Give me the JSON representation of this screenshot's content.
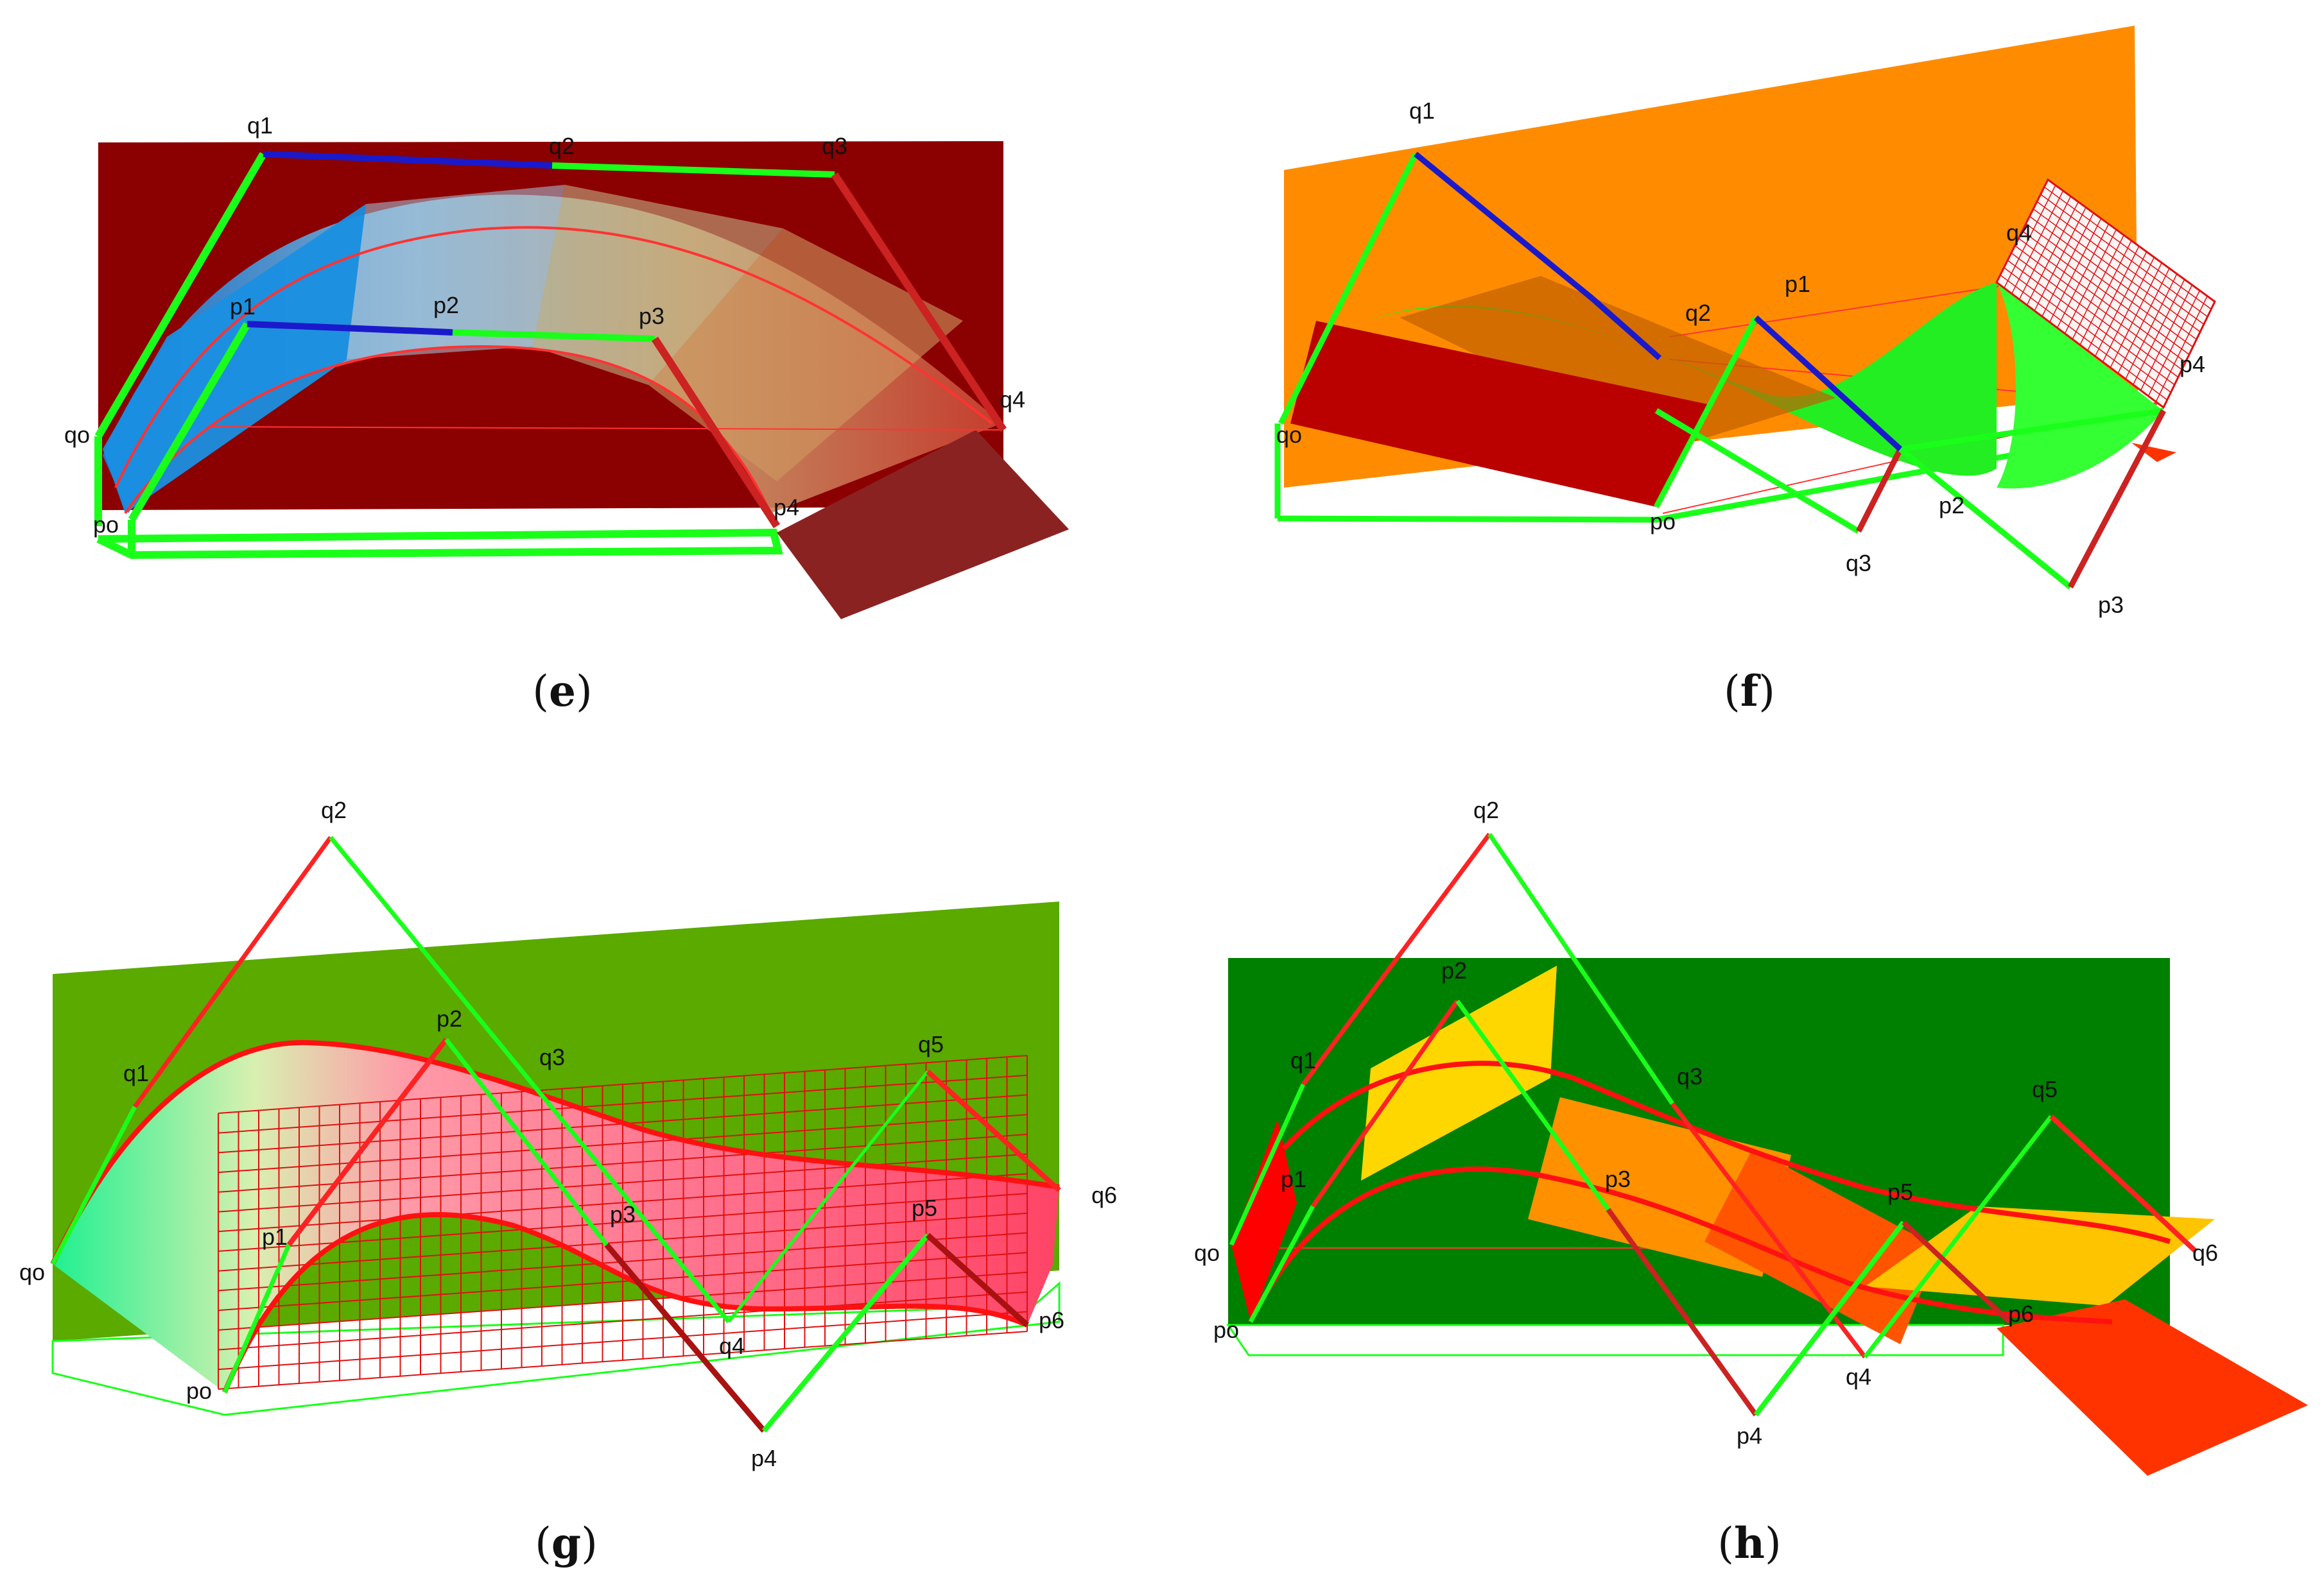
{
  "panels": [
    {
      "id": "e",
      "caption_open": "(",
      "caption_letter": "e",
      "caption_close": ")",
      "labels": [
        "q1",
        "q2",
        "q3",
        "q4",
        "qo",
        "p1",
        "p2",
        "p3",
        "p4",
        "po"
      ],
      "colors": {
        "backplane": "#8b0000",
        "control": "#1aff1a",
        "control_dark": "#cc2222",
        "blue": "#1a1acc"
      }
    },
    {
      "id": "f",
      "caption_open": "(",
      "caption_letter": "f",
      "caption_close": ")",
      "labels": [
        "q1",
        "q2",
        "q3",
        "q4",
        "qo",
        "p1",
        "p2",
        "p3",
        "p4",
        "po"
      ],
      "colors": {
        "backplane": "#ff8c00",
        "surface": "#22ee22",
        "plate": "#bb0000"
      }
    },
    {
      "id": "g",
      "caption_open": "(",
      "caption_letter": "g",
      "caption_close": ")",
      "labels": [
        "q1",
        "q2",
        "q3",
        "q4",
        "q5",
        "q6",
        "qo",
        "p1",
        "p2",
        "p3",
        "p4",
        "p5",
        "p6",
        "po"
      ],
      "colors": {
        "backplane": "#5aaa00",
        "surface": "#ff5b78",
        "grid": "#e01010"
      }
    },
    {
      "id": "h",
      "caption_open": "(",
      "caption_letter": "h",
      "caption_close": ")",
      "labels": [
        "q1",
        "q2",
        "q3",
        "q4",
        "q5",
        "q6",
        "qo",
        "p1",
        "p2",
        "p3",
        "p4",
        "p5",
        "p6",
        "po"
      ],
      "colors": {
        "backplane": "#008000",
        "plate_yellow": "#ffd700",
        "plate_orange": "#ff8c00",
        "plate_red": "#ff3300"
      }
    }
  ]
}
